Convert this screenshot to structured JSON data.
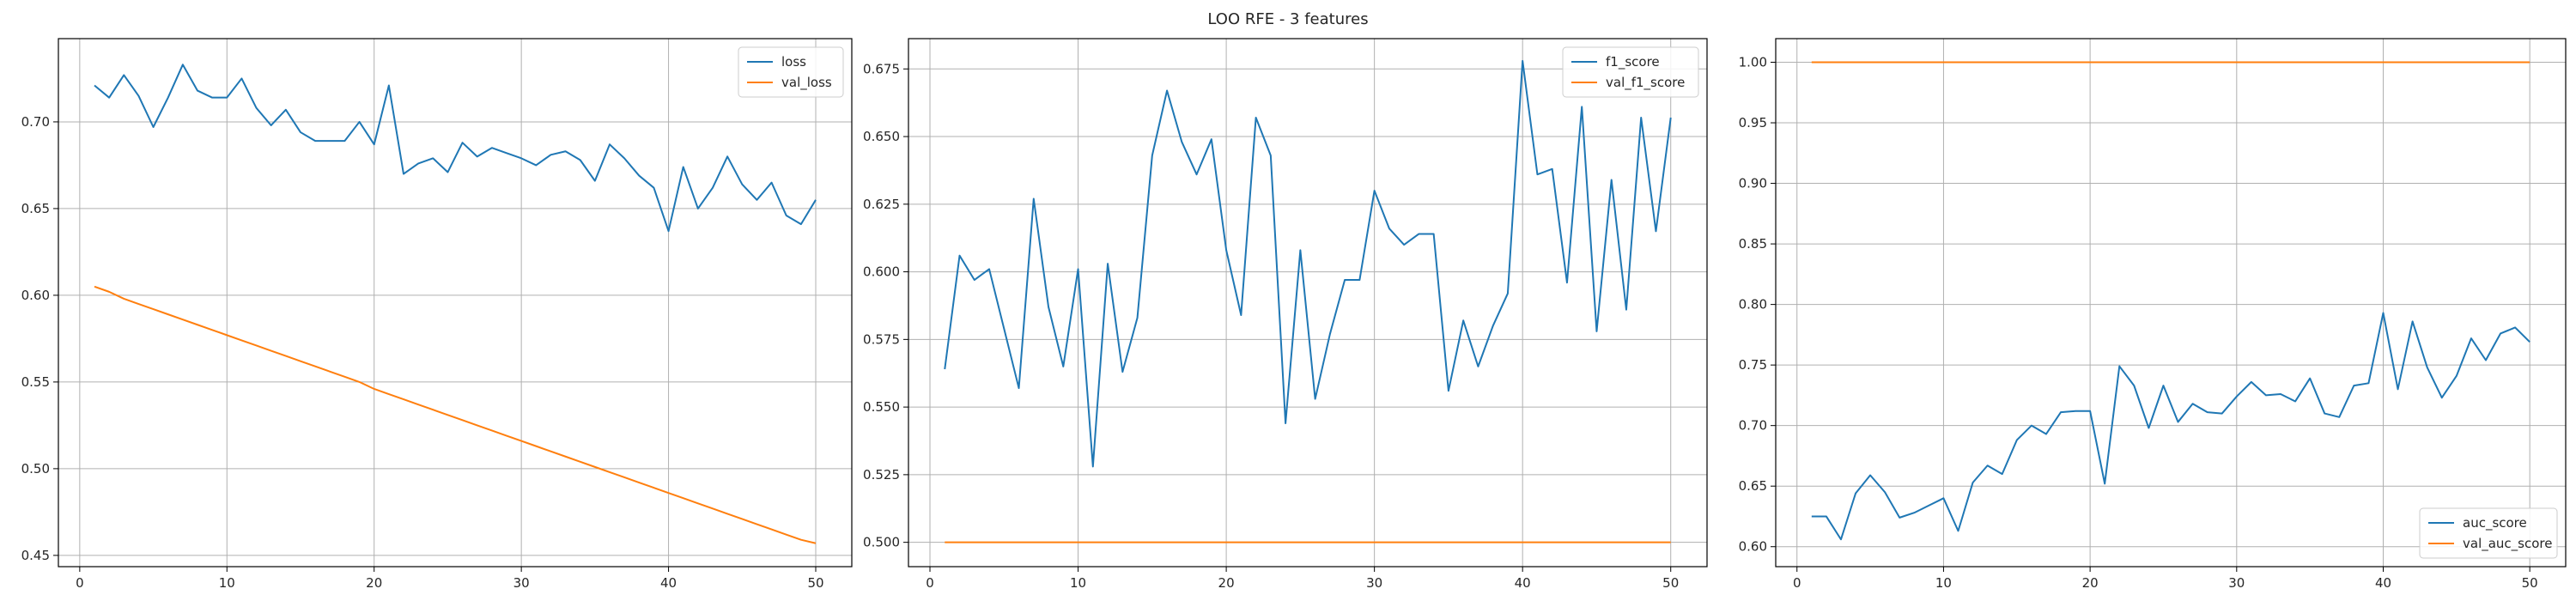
{
  "figure": {
    "suptitle": "LOO RFE - 3 features",
    "colors": {
      "series_1": "#1f77b4",
      "series_2": "#ff7f0e",
      "grid": "#b0b0b0",
      "axes": "#000000"
    }
  },
  "chart_data": [
    {
      "type": "line",
      "title": "",
      "xlabel": "",
      "ylabel": "",
      "xlim": [
        -1.45,
        52.45
      ],
      "ylim": [
        0.4435,
        0.748
      ],
      "xticks": [
        0,
        10,
        20,
        30,
        40,
        50
      ],
      "yticks": [
        0.45,
        0.5,
        0.55,
        0.6,
        0.65,
        0.7
      ],
      "ytick_labels": [
        "0.45",
        "0.50",
        "0.55",
        "0.60",
        "0.65",
        "0.70"
      ],
      "grid": true,
      "legend_position": "top-right",
      "x": [
        1,
        2,
        3,
        4,
        5,
        6,
        7,
        8,
        9,
        10,
        11,
        12,
        13,
        14,
        15,
        16,
        17,
        18,
        19,
        20,
        21,
        22,
        23,
        24,
        25,
        26,
        27,
        28,
        29,
        30,
        31,
        32,
        33,
        34,
        35,
        36,
        37,
        38,
        39,
        40,
        41,
        42,
        43,
        44,
        45,
        46,
        47,
        48,
        49,
        50
      ],
      "series": [
        {
          "name": "loss",
          "color": "#1f77b4",
          "values": [
            0.721,
            0.714,
            0.727,
            0.715,
            0.697,
            0.714,
            0.733,
            0.718,
            0.714,
            0.714,
            0.725,
            0.708,
            0.698,
            0.707,
            0.694,
            0.689,
            0.689,
            0.689,
            0.7,
            0.687,
            0.721,
            0.67,
            0.676,
            0.679,
            0.671,
            0.688,
            0.68,
            0.685,
            0.682,
            0.679,
            0.675,
            0.681,
            0.683,
            0.678,
            0.666,
            0.687,
            0.679,
            0.669,
            0.662,
            0.637,
            0.674,
            0.65,
            0.662,
            0.68,
            0.664,
            0.655,
            0.665,
            0.646,
            0.641,
            0.655
          ]
        },
        {
          "name": "val_loss",
          "color": "#ff7f0e",
          "values": [
            0.605,
            0.602,
            0.598,
            0.595,
            0.592,
            0.589,
            0.586,
            0.583,
            0.58,
            0.577,
            0.574,
            0.571,
            0.568,
            0.565,
            0.562,
            0.559,
            0.556,
            0.553,
            0.55,
            0.546,
            0.543,
            0.54,
            0.537,
            0.534,
            0.531,
            0.528,
            0.525,
            0.522,
            0.519,
            0.516,
            0.513,
            0.51,
            0.507,
            0.504,
            0.501,
            0.498,
            0.495,
            0.492,
            0.489,
            0.486,
            0.483,
            0.48,
            0.477,
            0.474,
            0.471,
            0.468,
            0.465,
            0.462,
            0.459,
            0.457
          ]
        }
      ]
    },
    {
      "type": "line",
      "title": "",
      "xlabel": "",
      "ylabel": "",
      "xlim": [
        -1.45,
        52.45
      ],
      "ylim": [
        0.491,
        0.6862
      ],
      "xticks": [
        0,
        10,
        20,
        30,
        40,
        50
      ],
      "yticks": [
        0.5,
        0.525,
        0.55,
        0.575,
        0.6,
        0.625,
        0.65,
        0.675
      ],
      "ytick_labels": [
        "0.500",
        "0.525",
        "0.550",
        "0.575",
        "0.600",
        "0.625",
        "0.650",
        "0.675"
      ],
      "grid": true,
      "legend_position": "top-right",
      "x": [
        1,
        2,
        3,
        4,
        5,
        6,
        7,
        8,
        9,
        10,
        11,
        12,
        13,
        14,
        15,
        16,
        17,
        18,
        19,
        20,
        21,
        22,
        23,
        24,
        25,
        26,
        27,
        28,
        29,
        30,
        31,
        32,
        33,
        34,
        35,
        36,
        37,
        38,
        39,
        40,
        41,
        42,
        43,
        44,
        45,
        46,
        47,
        48,
        49,
        50
      ],
      "series": [
        {
          "name": "f1_score",
          "color": "#1f77b4",
          "values": [
            0.564,
            0.606,
            0.597,
            0.601,
            0.579,
            0.557,
            0.627,
            0.587,
            0.565,
            0.601,
            0.528,
            0.603,
            0.563,
            0.583,
            0.643,
            0.667,
            0.648,
            0.636,
            0.649,
            0.608,
            0.584,
            0.657,
            0.643,
            0.544,
            0.608,
            0.553,
            0.577,
            0.597,
            0.597,
            0.63,
            0.616,
            0.61,
            0.614,
            0.614,
            0.556,
            0.582,
            0.565,
            0.58,
            0.592,
            0.678,
            0.636,
            0.638,
            0.596,
            0.661,
            0.578,
            0.634,
            0.586,
            0.657,
            0.615,
            0.657
          ]
        },
        {
          "name": "val_f1_score",
          "color": "#ff7f0e",
          "values": [
            0.5,
            0.5,
            0.5,
            0.5,
            0.5,
            0.5,
            0.5,
            0.5,
            0.5,
            0.5,
            0.5,
            0.5,
            0.5,
            0.5,
            0.5,
            0.5,
            0.5,
            0.5,
            0.5,
            0.5,
            0.5,
            0.5,
            0.5,
            0.5,
            0.5,
            0.5,
            0.5,
            0.5,
            0.5,
            0.5,
            0.5,
            0.5,
            0.5,
            0.5,
            0.5,
            0.5,
            0.5,
            0.5,
            0.5,
            0.5,
            0.5,
            0.5,
            0.5,
            0.5,
            0.5,
            0.5,
            0.5,
            0.5,
            0.5,
            0.5
          ]
        }
      ]
    },
    {
      "type": "line",
      "title": "",
      "xlabel": "",
      "ylabel": "",
      "xlim": [
        -1.45,
        52.45
      ],
      "ylim": [
        0.5835,
        1.0195
      ],
      "xticks": [
        0,
        10,
        20,
        30,
        40,
        50
      ],
      "yticks": [
        0.6,
        0.65,
        0.7,
        0.75,
        0.8,
        0.85,
        0.9,
        0.95,
        1.0
      ],
      "ytick_labels": [
        "0.60",
        "0.65",
        "0.70",
        "0.75",
        "0.80",
        "0.85",
        "0.90",
        "0.95",
        "1.00"
      ],
      "grid": true,
      "legend_position": "bottom-right",
      "x": [
        1,
        2,
        3,
        4,
        5,
        6,
        7,
        8,
        9,
        10,
        11,
        12,
        13,
        14,
        15,
        16,
        17,
        18,
        19,
        20,
        21,
        22,
        23,
        24,
        25,
        26,
        27,
        28,
        29,
        30,
        31,
        32,
        33,
        34,
        35,
        36,
        37,
        38,
        39,
        40,
        41,
        42,
        43,
        44,
        45,
        46,
        47,
        48,
        49,
        50
      ],
      "series": [
        {
          "name": "auc_score",
          "color": "#1f77b4",
          "values": [
            0.625,
            0.625,
            0.606,
            0.644,
            0.659,
            0.645,
            0.624,
            0.628,
            0.634,
            0.64,
            0.613,
            0.653,
            0.667,
            0.66,
            0.688,
            0.7,
            0.693,
            0.711,
            0.712,
            0.712,
            0.652,
            0.749,
            0.733,
            0.698,
            0.733,
            0.703,
            0.718,
            0.711,
            0.71,
            0.724,
            0.736,
            0.725,
            0.726,
            0.72,
            0.739,
            0.71,
            0.707,
            0.733,
            0.735,
            0.793,
            0.73,
            0.786,
            0.748,
            0.723,
            0.741,
            0.772,
            0.754,
            0.776,
            0.781,
            0.769
          ]
        },
        {
          "name": "val_auc_score",
          "color": "#ff7f0e",
          "values": [
            1,
            1,
            1,
            1,
            1,
            1,
            1,
            1,
            1,
            1,
            1,
            1,
            1,
            1,
            1,
            1,
            1,
            1,
            1,
            1,
            1,
            1,
            1,
            1,
            1,
            1,
            1,
            1,
            1,
            1,
            1,
            1,
            1,
            1,
            1,
            1,
            1,
            1,
            1,
            1,
            1,
            1,
            1,
            1,
            1,
            1,
            1,
            1,
            1,
            1
          ]
        }
      ]
    }
  ]
}
